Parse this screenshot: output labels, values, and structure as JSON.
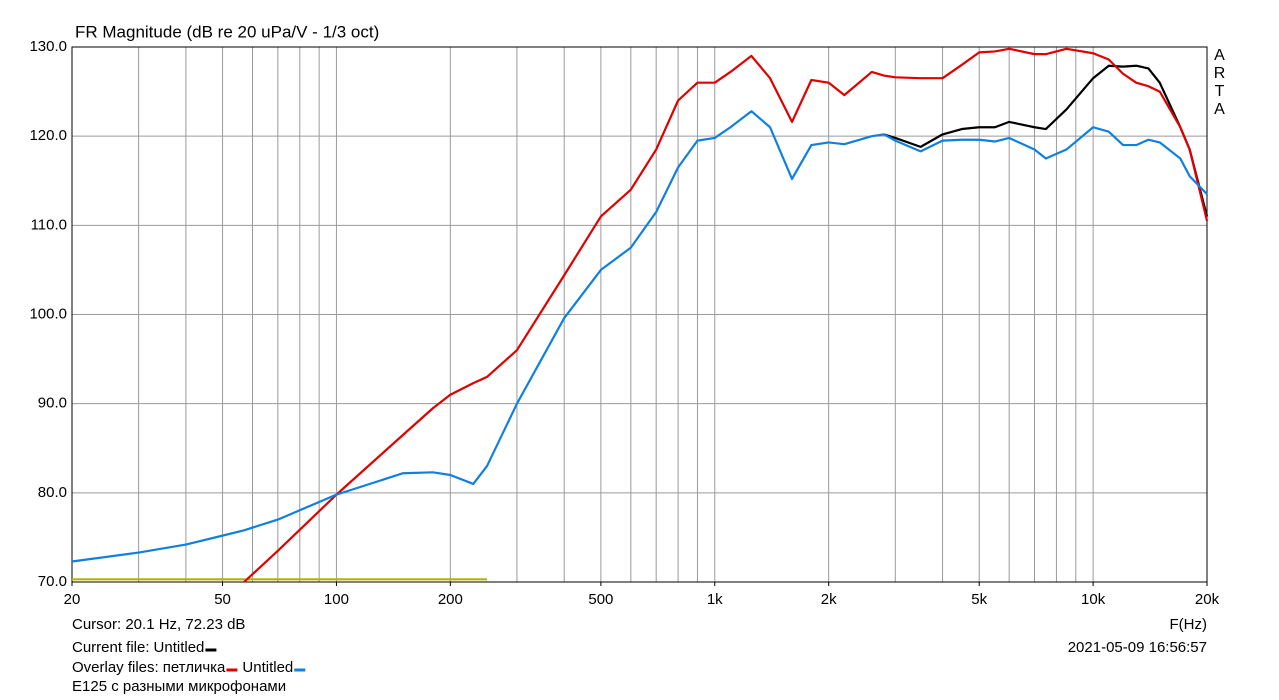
{
  "chart_data": {
    "type": "line",
    "title": "FR Magnitude (dB re 20 uPa/V - 1/3 oct)",
    "watermark": "ARTA",
    "cursor": "Cursor: 20.1 Hz, 72.23 dB",
    "x_label": "F(Hz)",
    "timestamp": "2021-05-09  16:56:57",
    "note": "E125 с разными микрофонами",
    "legend_current_label": "Current file:",
    "legend_overlay_label": "Overlay files:",
    "x_scale": "log",
    "xlim": [
      20,
      20000
    ],
    "ylim": [
      70,
      130
    ],
    "xticks": [
      20,
      50,
      100,
      200,
      500,
      {
        "value": 1000,
        "label": "1k"
      },
      {
        "value": 2000,
        "label": "2k"
      },
      {
        "value": 5000,
        "label": "5k"
      },
      {
        "value": 10000,
        "label": "10k"
      },
      {
        "value": 20000,
        "label": "20k"
      }
    ],
    "xgrid": [
      20,
      30,
      40,
      50,
      60,
      70,
      80,
      90,
      100,
      200,
      300,
      400,
      500,
      600,
      700,
      800,
      900,
      1000,
      2000,
      3000,
      4000,
      5000,
      6000,
      7000,
      8000,
      9000,
      10000,
      20000
    ],
    "yticks": [
      {
        "value": 70,
        "label": "70.0"
      },
      {
        "value": 80,
        "label": "80.0"
      },
      {
        "value": 90,
        "label": "90.0"
      },
      {
        "value": 100,
        "label": "100.0"
      },
      {
        "value": 110,
        "label": "110.0"
      },
      {
        "value": 120,
        "label": "120.0"
      },
      {
        "value": 130,
        "label": "130.0"
      }
    ],
    "grid": true,
    "x": [
      20,
      30,
      40,
      50,
      57,
      70,
      100,
      150,
      180,
      200,
      230,
      250,
      300,
      400,
      500,
      600,
      700,
      800,
      900,
      1000,
      1100,
      1250,
      1400,
      1600,
      1800,
      2000,
      2200,
      2600,
      2800,
      3000,
      3500,
      4000,
      4500,
      5000,
      5500,
      6000,
      7000,
      7500,
      8500,
      10000,
      11000,
      12000,
      13000,
      14000,
      15000,
      17000,
      18000,
      20000
    ],
    "series": [
      {
        "color": "#b4b400",
        "values": [
          70.3,
          70.3,
          70.3,
          70.3,
          70.3,
          70.3,
          70.3,
          70.3,
          70.3,
          70.3,
          70.3,
          70.3,
          null,
          null,
          null,
          null,
          null,
          null,
          null,
          null,
          null,
          null,
          null,
          null,
          null,
          null,
          null,
          null,
          null,
          null,
          null,
          null,
          null,
          null,
          null,
          null,
          null,
          null,
          null,
          null,
          null,
          null,
          null,
          null,
          null,
          null,
          null,
          null
        ]
      },
      {
        "name": "Untitled",
        "legend": "current",
        "color": "#000000",
        "values": [
          null,
          null,
          null,
          null,
          null,
          null,
          null,
          null,
          null,
          null,
          null,
          null,
          null,
          null,
          null,
          null,
          null,
          null,
          null,
          null,
          null,
          null,
          null,
          null,
          null,
          null,
          null,
          null,
          120.2,
          119.8,
          118.8,
          120.2,
          120.8,
          121,
          121,
          121.6,
          121,
          120.8,
          123,
          126.5,
          127.9,
          127.8,
          127.9,
          127.6,
          126,
          121,
          118.5,
          111
        ]
      },
      {
        "name": "петличка",
        "legend": "overlay",
        "color": "#e00000",
        "values": [
          null,
          null,
          null,
          null,
          70,
          73.5,
          79.8,
          86.5,
          89.5,
          91,
          92.3,
          93,
          96,
          104.4,
          111,
          114,
          118.5,
          124,
          126,
          126,
          127.2,
          129,
          126.5,
          121.6,
          126.3,
          126,
          124.6,
          127.2,
          126.8,
          126.6,
          126.5,
          126.5,
          128,
          129.4,
          129.5,
          129.8,
          129.2,
          129.2,
          129.8,
          129.3,
          128.6,
          127,
          126,
          125.6,
          125,
          121,
          118.5,
          110.5
        ]
      },
      {
        "name": "Untitled",
        "legend": "overlay",
        "color": "#1080e0",
        "values": [
          72.3,
          73.3,
          74.2,
          75.2,
          75.8,
          77,
          79.8,
          82.2,
          82.3,
          82,
          81,
          83,
          90,
          99.6,
          105,
          107.5,
          111.5,
          116.5,
          119.5,
          119.8,
          121,
          122.8,
          121,
          115.2,
          119,
          119.3,
          119.1,
          120,
          120.2,
          119.5,
          118.3,
          119.5,
          119.6,
          119.6,
          119.4,
          119.8,
          118.5,
          117.5,
          118.5,
          121,
          120.5,
          119,
          119,
          119.6,
          119.3,
          117.5,
          115.5,
          113.5
        ]
      }
    ]
  }
}
